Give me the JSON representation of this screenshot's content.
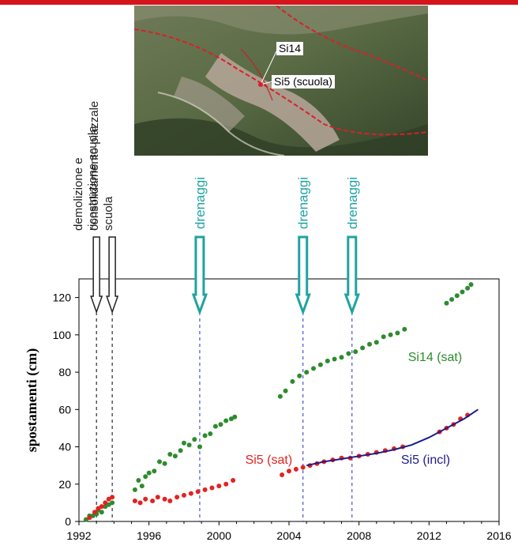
{
  "photo": {
    "labels": [
      "Si14",
      "Si5 (scuola)"
    ]
  },
  "events": [
    {
      "label_lines": [
        "demolizione e",
        "ricostruzione scuola"
      ],
      "x": 1993.0,
      "kind": "works",
      "color": "#222222"
    },
    {
      "label_lines": [
        "consolidamento piazzale",
        "scuola"
      ],
      "x": 1993.9,
      "kind": "works",
      "color": "#222222"
    },
    {
      "label_lines": [
        "drenaggi"
      ],
      "x": 1998.9,
      "kind": "drainage",
      "color": "#1fa3a0"
    },
    {
      "label_lines": [
        "drenaggi"
      ],
      "x": 2004.8,
      "kind": "drainage",
      "color": "#1fa3a0"
    },
    {
      "label_lines": [
        "drenaggi"
      ],
      "x": 2007.6,
      "kind": "drainage",
      "color": "#1fa3a0"
    }
  ],
  "chart_data": {
    "type": "scatter",
    "ylabel": "spostamenti (cm)",
    "xlabel": "",
    "xlim": [
      1992,
      2016
    ],
    "ylim": [
      0,
      130
    ],
    "xticks": [
      "1992",
      "1996",
      "2000",
      "2004",
      "2008",
      "2012",
      "2016"
    ],
    "yticks": [
      "0",
      "20",
      "40",
      "60",
      "80",
      "100",
      "120"
    ],
    "grid": false,
    "series": [
      {
        "name": "Si14 (sat)",
        "color": "#2e8b2e",
        "label_at": [
          2010.8,
          86
        ],
        "points": [
          [
            1992.4,
            1
          ],
          [
            1992.6,
            3
          ],
          [
            1992.8,
            3
          ],
          [
            1993.0,
            4
          ],
          [
            1993.1,
            6
          ],
          [
            1993.3,
            5
          ],
          [
            1993.5,
            8
          ],
          [
            1993.7,
            9
          ],
          [
            1993.9,
            10
          ],
          [
            1995.2,
            17
          ],
          [
            1995.4,
            22
          ],
          [
            1995.6,
            19
          ],
          [
            1995.8,
            24
          ],
          [
            1996.0,
            26
          ],
          [
            1996.3,
            27
          ],
          [
            1996.6,
            32
          ],
          [
            1996.9,
            31
          ],
          [
            1997.2,
            36
          ],
          [
            1997.5,
            35
          ],
          [
            1997.8,
            38
          ],
          [
            1998.0,
            42
          ],
          [
            1998.3,
            41
          ],
          [
            1998.6,
            44
          ],
          [
            1998.9,
            40
          ],
          [
            1999.2,
            46
          ],
          [
            1999.5,
            47
          ],
          [
            1999.8,
            51
          ],
          [
            2000.1,
            52
          ],
          [
            2000.4,
            54
          ],
          [
            2000.7,
            55
          ],
          [
            2000.9,
            56
          ],
          [
            2003.5,
            67
          ],
          [
            2003.8,
            70
          ],
          [
            2004.2,
            75
          ],
          [
            2004.6,
            78
          ],
          [
            2005.0,
            80
          ],
          [
            2005.4,
            82
          ],
          [
            2005.8,
            84
          ],
          [
            2006.2,
            86
          ],
          [
            2006.6,
            87
          ],
          [
            2007.0,
            88
          ],
          [
            2007.4,
            90
          ],
          [
            2007.8,
            91
          ],
          [
            2008.2,
            93
          ],
          [
            2008.6,
            95
          ],
          [
            2009.0,
            96
          ],
          [
            2009.4,
            99
          ],
          [
            2009.8,
            100
          ],
          [
            2010.2,
            101
          ],
          [
            2010.6,
            103
          ],
          [
            2013.0,
            117
          ],
          [
            2013.3,
            119
          ],
          [
            2013.6,
            121
          ],
          [
            2013.9,
            123
          ],
          [
            2014.2,
            125
          ],
          [
            2014.4,
            127
          ]
        ]
      },
      {
        "name": "Si5 (sat)",
        "color": "#e32222",
        "label_at": [
          2001.5,
          31
        ],
        "points": [
          [
            1992.6,
            2
          ],
          [
            1992.9,
            5
          ],
          [
            1993.1,
            7
          ],
          [
            1993.3,
            8
          ],
          [
            1993.5,
            10
          ],
          [
            1993.7,
            12
          ],
          [
            1993.9,
            13
          ],
          [
            1995.2,
            11
          ],
          [
            1995.5,
            10
          ],
          [
            1995.8,
            12
          ],
          [
            1996.2,
            11
          ],
          [
            1996.5,
            13
          ],
          [
            1996.9,
            12
          ],
          [
            1997.2,
            11
          ],
          [
            1997.6,
            13
          ],
          [
            1998.0,
            14
          ],
          [
            1998.4,
            15
          ],
          [
            1998.8,
            16
          ],
          [
            1999.2,
            17
          ],
          [
            1999.6,
            18
          ],
          [
            2000.0,
            19
          ],
          [
            2000.4,
            20
          ],
          [
            2000.8,
            22
          ],
          [
            2003.6,
            25
          ],
          [
            2004.0,
            27
          ],
          [
            2004.4,
            28
          ],
          [
            2004.8,
            29
          ],
          [
            2005.2,
            30
          ],
          [
            2005.6,
            31
          ],
          [
            2006.0,
            32
          ],
          [
            2006.5,
            33
          ],
          [
            2007.0,
            34
          ],
          [
            2007.5,
            34
          ],
          [
            2008.0,
            35
          ],
          [
            2008.5,
            36
          ],
          [
            2009.0,
            37
          ],
          [
            2009.5,
            38
          ],
          [
            2010.0,
            39
          ],
          [
            2010.5,
            40
          ],
          [
            2012.6,
            48
          ],
          [
            2013.0,
            50
          ],
          [
            2013.4,
            52
          ],
          [
            2013.8,
            55
          ],
          [
            2014.2,
            57
          ]
        ]
      },
      {
        "name": "Si5 (incl)",
        "color": "#1c1c8a",
        "kind": "line",
        "label_at": [
          2010.4,
          31
        ],
        "points": [
          [
            2005.0,
            30
          ],
          [
            2006.0,
            32
          ],
          [
            2007.0,
            33.5
          ],
          [
            2008.0,
            35
          ],
          [
            2009.0,
            36.5
          ],
          [
            2010.0,
            38.5
          ],
          [
            2011.0,
            41
          ],
          [
            2012.0,
            45
          ],
          [
            2013.0,
            50
          ],
          [
            2014.0,
            55
          ],
          [
            2014.8,
            60
          ]
        ]
      }
    ]
  }
}
